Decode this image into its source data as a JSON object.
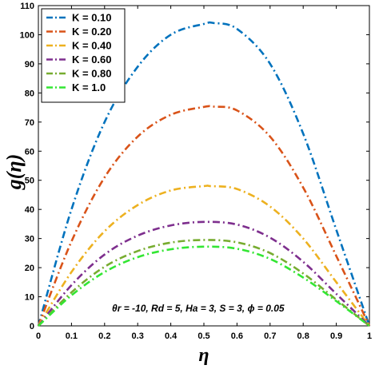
{
  "chart_data": {
    "type": "line",
    "xlabel": "η",
    "ylabel": "g(η)",
    "xlim": [
      0,
      1
    ],
    "ylim": [
      0,
      110
    ],
    "xticks": [
      "0",
      "0.1",
      "0.2",
      "0.3",
      "0.4",
      "0.5",
      "0.6",
      "0.7",
      "0.8",
      "0.9",
      "1"
    ],
    "yticks": [
      "0",
      "10",
      "20",
      "30",
      "40",
      "50",
      "60",
      "70",
      "80",
      "90",
      "100",
      "110"
    ],
    "legend_position": "top-left",
    "annotation": "θr = -10, Rd = 5, Ha = 3, S = 3, ϕ = 0.05",
    "series": [
      {
        "name": "K = 0.10",
        "color": "#0072BD",
        "x": [
          0,
          0.1,
          0.2,
          0.3,
          0.4,
          0.5,
          0.53,
          0.6,
          0.7,
          0.8,
          0.9,
          1
        ],
        "values": [
          0,
          40,
          70,
          89,
          100,
          103.7,
          104,
          102,
          90,
          66,
          33,
          0
        ]
      },
      {
        "name": "K = 0.20",
        "color": "#D95319",
        "x": [
          0,
          0.1,
          0.2,
          0.3,
          0.4,
          0.5,
          0.53,
          0.6,
          0.7,
          0.8,
          0.9,
          1
        ],
        "values": [
          0,
          29,
          51,
          65,
          72.5,
          75.2,
          75.3,
          74,
          65,
          47.5,
          24,
          0
        ]
      },
      {
        "name": "K = 0.40",
        "color": "#EDB120",
        "x": [
          0,
          0.1,
          0.2,
          0.3,
          0.4,
          0.5,
          0.52,
          0.6,
          0.7,
          0.8,
          0.9,
          1
        ],
        "values": [
          0,
          18.5,
          32.5,
          41.5,
          46.5,
          48,
          48,
          47,
          41,
          30,
          15,
          0
        ]
      },
      {
        "name": "K = 0.60",
        "color": "#7E2F8E",
        "x": [
          0,
          0.1,
          0.2,
          0.3,
          0.4,
          0.5,
          0.6,
          0.7,
          0.8,
          0.9,
          1
        ],
        "values": [
          0,
          14,
          24.5,
          31,
          34.5,
          35.7,
          34.8,
          30.3,
          22,
          11,
          0
        ]
      },
      {
        "name": "K = 0.80",
        "color": "#77AC30",
        "x": [
          0,
          0.1,
          0.2,
          0.3,
          0.4,
          0.5,
          0.6,
          0.7,
          0.8,
          0.9,
          1
        ],
        "values": [
          0,
          11.5,
          20.3,
          25.7,
          28.6,
          29.5,
          28.7,
          25,
          18,
          9,
          0
        ]
      },
      {
        "name": "K = 1.0",
        "color": "#33E633",
        "x": [
          0,
          0.1,
          0.2,
          0.3,
          0.4,
          0.5,
          0.6,
          0.7,
          0.8,
          0.9,
          1
        ],
        "values": [
          0,
          10.5,
          18.5,
          23.6,
          26.3,
          27.2,
          26.5,
          23,
          16.6,
          8.5,
          0
        ]
      }
    ]
  }
}
